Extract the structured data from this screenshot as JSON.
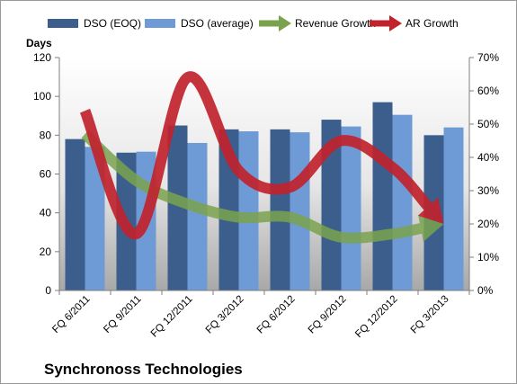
{
  "chart_data": {
    "type": "bar",
    "title": "Synchronoss Technologies",
    "ylabel": "Days",
    "ylim": [
      0,
      120
    ],
    "y2lim": [
      0,
      0.7
    ],
    "categories": [
      "FQ 6/2011",
      "FQ 9/2011",
      "FQ 12/2011",
      "FQ 3/2012",
      "FQ 6/2012",
      "FQ 9/2012",
      "FQ 12/2012",
      "FQ 3/2013"
    ],
    "y_ticks": [
      "0",
      "20",
      "40",
      "60",
      "80",
      "100",
      "120"
    ],
    "y2_ticks": [
      "0%",
      "10%",
      "20%",
      "30%",
      "40%",
      "50%",
      "60%",
      "70%"
    ],
    "legend_position": "top",
    "grid": false,
    "series": [
      {
        "name": "DSO (EOQ)",
        "kind": "bar",
        "axis": "left",
        "color": "#3b5e8c",
        "values": [
          78,
          71,
          85,
          83,
          83,
          88,
          97,
          80
        ]
      },
      {
        "name": "DSO (average)",
        "kind": "bar",
        "axis": "left",
        "color": "#6e9bd6",
        "values": [
          74,
          71.5,
          76,
          82,
          81.5,
          84.5,
          90.5,
          84
        ]
      },
      {
        "name": "Revenue Growth",
        "kind": "line-arrow",
        "axis": "right",
        "color": "#7aa24e",
        "values": [
          0.47,
          0.33,
          0.26,
          0.22,
          0.22,
          0.16,
          0.17,
          0.2
        ]
      },
      {
        "name": "AR Growth",
        "kind": "line-arrow",
        "axis": "right",
        "color": "#c0232c",
        "values": [
          0.54,
          0.17,
          0.64,
          0.36,
          0.31,
          0.45,
          0.37,
          0.2
        ]
      }
    ]
  }
}
